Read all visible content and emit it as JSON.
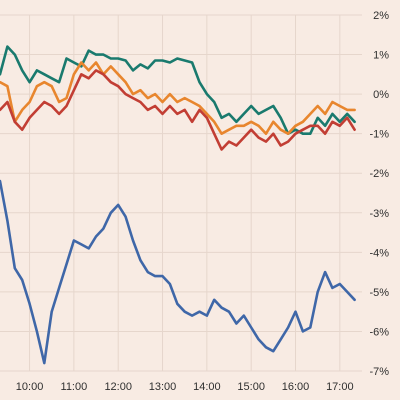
{
  "chart_data": {
    "type": "line",
    "title": "",
    "xlabel": "",
    "ylabel": "",
    "x_ticks": [
      "10:00",
      "11:00",
      "12:00",
      "13:00",
      "14:00",
      "15:00",
      "16:00",
      "17:00"
    ],
    "y_ticks": [
      "2%",
      "1%",
      "0%",
      "-1%",
      "-2%",
      "-3%",
      "-4%",
      "-5%",
      "-6%",
      "-7%"
    ],
    "y_tick_values": [
      2,
      1,
      0,
      -1,
      -2,
      -3,
      -4,
      -5,
      -6,
      -7
    ],
    "ylim": [
      -7,
      2
    ],
    "xlim": [
      "09:20",
      "17:30"
    ],
    "y_axis_position": "right",
    "grid": true,
    "legend": "none",
    "x": [
      "09:20",
      "09:30",
      "09:40",
      "09:50",
      "10:00",
      "10:10",
      "10:20",
      "10:30",
      "10:40",
      "10:50",
      "11:00",
      "11:10",
      "11:20",
      "11:30",
      "11:40",
      "11:50",
      "12:00",
      "12:10",
      "12:20",
      "12:30",
      "12:40",
      "12:50",
      "13:00",
      "13:10",
      "13:20",
      "13:30",
      "13:40",
      "13:50",
      "14:00",
      "14:10",
      "14:20",
      "14:30",
      "14:40",
      "14:50",
      "15:00",
      "15:10",
      "15:20",
      "15:30",
      "15:40",
      "15:50",
      "16:00",
      "16:10",
      "16:20",
      "16:30",
      "16:40",
      "16:50",
      "17:00",
      "17:10",
      "17:20"
    ],
    "series": [
      {
        "color": "#1a7a6e",
        "values": [
          0.5,
          1.2,
          1.0,
          0.6,
          0.3,
          0.6,
          0.5,
          0.4,
          0.3,
          0.9,
          0.8,
          0.7,
          1.1,
          1.0,
          1.0,
          0.9,
          0.9,
          0.85,
          0.6,
          0.75,
          0.65,
          0.85,
          0.85,
          0.8,
          0.9,
          0.85,
          0.8,
          0.3,
          0.0,
          -0.2,
          -0.6,
          -0.5,
          -0.7,
          -0.5,
          -0.3,
          -0.5,
          -0.4,
          -0.3,
          -0.6,
          -1.0,
          -0.9,
          -1.0,
          -1.0,
          -0.6,
          -0.8,
          -0.5,
          -0.7,
          -0.5,
          -0.7
        ]
      },
      {
        "color": "#e8862e",
        "values": [
          0.3,
          0.2,
          -0.7,
          -0.4,
          -0.2,
          0.2,
          0.3,
          0.2,
          -0.2,
          -0.1,
          0.5,
          0.8,
          0.6,
          0.8,
          0.5,
          0.7,
          0.5,
          0.3,
          0.0,
          0.1,
          -0.1,
          0.0,
          -0.2,
          0.0,
          -0.2,
          -0.1,
          -0.2,
          -0.3,
          -0.5,
          -0.7,
          -1.0,
          -0.9,
          -0.8,
          -0.8,
          -0.7,
          -0.8,
          -1.0,
          -0.7,
          -0.9,
          -1.0,
          -0.8,
          -0.7,
          -0.5,
          -0.3,
          -0.5,
          -0.2,
          -0.3,
          -0.4,
          -0.4
        ]
      },
      {
        "color": "#c23e34",
        "values": [
          -0.4,
          -0.2,
          -0.7,
          -0.9,
          -0.6,
          -0.4,
          -0.2,
          -0.3,
          -0.5,
          -0.3,
          0.1,
          0.5,
          0.4,
          0.6,
          0.5,
          0.3,
          0.2,
          0.0,
          -0.1,
          -0.2,
          -0.4,
          -0.3,
          -0.5,
          -0.3,
          -0.5,
          -0.4,
          -0.7,
          -0.4,
          -0.6,
          -1.0,
          -1.4,
          -1.2,
          -1.3,
          -1.1,
          -0.9,
          -1.1,
          -1.2,
          -1.0,
          -1.3,
          -1.2,
          -1.0,
          -0.9,
          -0.8,
          -0.8,
          -1.0,
          -0.7,
          -0.8,
          -0.6,
          -0.9
        ]
      },
      {
        "color": "#3f67a8",
        "values": [
          -2.2,
          -3.2,
          -4.4,
          -4.7,
          -5.3,
          -6.0,
          -6.8,
          -5.5,
          -4.9,
          -4.3,
          -3.7,
          -3.8,
          -3.9,
          -3.6,
          -3.4,
          -3.0,
          -2.8,
          -3.1,
          -3.7,
          -4.2,
          -4.5,
          -4.6,
          -4.6,
          -4.8,
          -5.3,
          -5.5,
          -5.6,
          -5.5,
          -5.6,
          -5.2,
          -5.4,
          -5.5,
          -5.8,
          -5.6,
          -5.9,
          -6.2,
          -6.4,
          -6.5,
          -6.2,
          -5.9,
          -5.5,
          -6.0,
          -5.9,
          -5.0,
          -4.5,
          -4.9,
          -4.8,
          -5.0,
          -5.2
        ]
      }
    ]
  }
}
